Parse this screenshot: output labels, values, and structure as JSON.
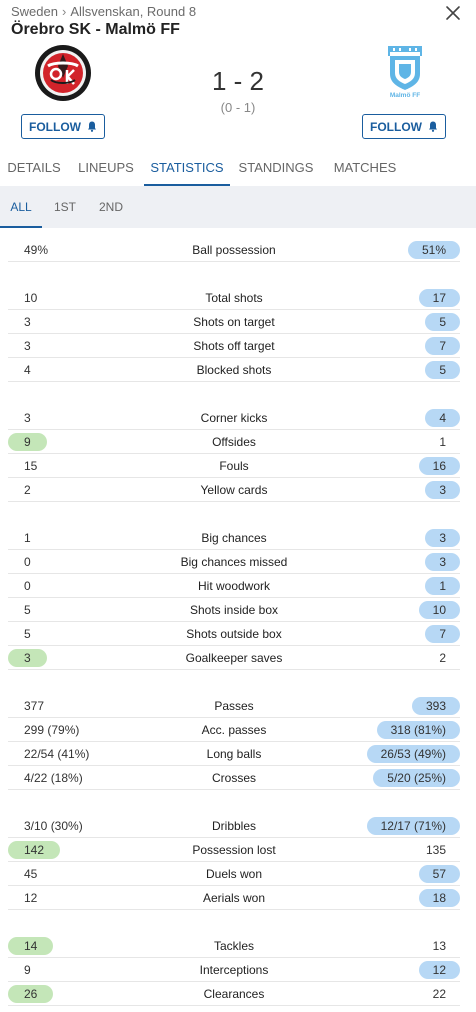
{
  "breadcrumb": {
    "country": "Sweden",
    "separator": "›",
    "league": "Allsvenskan, Round 8"
  },
  "match": {
    "title": "Örebro SK - Malmö FF",
    "score": "1 - 2",
    "halftime": "(0 - 1)"
  },
  "home": {
    "follow_label": "FOLLOW"
  },
  "away": {
    "follow_label": "FOLLOW",
    "logo_text": "Malmö FF"
  },
  "tabs": [
    "DETAILS",
    "LINEUPS",
    "STATISTICS",
    "STANDINGS",
    "MATCHES"
  ],
  "active_tab": "STATISTICS",
  "subtabs": [
    "ALL",
    "1ST",
    "2ND"
  ],
  "active_subtab": "ALL",
  "colors": {
    "accent": "#1a5d9e",
    "home_highlight": "#c4e6b8",
    "away_highlight": "#b7d8f5"
  },
  "stats": [
    {
      "name": "Ball possession",
      "home": "49%",
      "away": "51%",
      "better": "away"
    },
    {
      "name": "Total shots",
      "home": "10",
      "away": "17",
      "better": "away"
    },
    {
      "name": "Shots on target",
      "home": "3",
      "away": "5",
      "better": "away"
    },
    {
      "name": "Shots off target",
      "home": "3",
      "away": "7",
      "better": "away"
    },
    {
      "name": "Blocked shots",
      "home": "4",
      "away": "5",
      "better": "away"
    },
    {
      "name": "Corner kicks",
      "home": "3",
      "away": "4",
      "better": "away"
    },
    {
      "name": "Offsides",
      "home": "9",
      "away": "1",
      "better": "home"
    },
    {
      "name": "Fouls",
      "home": "15",
      "away": "16",
      "better": "away"
    },
    {
      "name": "Yellow cards",
      "home": "2",
      "away": "3",
      "better": "away"
    },
    {
      "name": "Big chances",
      "home": "1",
      "away": "3",
      "better": "away"
    },
    {
      "name": "Big chances missed",
      "home": "0",
      "away": "3",
      "better": "away"
    },
    {
      "name": "Hit woodwork",
      "home": "0",
      "away": "1",
      "better": "away"
    },
    {
      "name": "Shots inside box",
      "home": "5",
      "away": "10",
      "better": "away"
    },
    {
      "name": "Shots outside box",
      "home": "5",
      "away": "7",
      "better": "away"
    },
    {
      "name": "Goalkeeper saves",
      "home": "3",
      "away": "2",
      "better": "home"
    },
    {
      "name": "Passes",
      "home": "377",
      "away": "393",
      "better": "away"
    },
    {
      "name": "Acc. passes",
      "home": "299 (79%)",
      "away": "318 (81%)",
      "better": "away"
    },
    {
      "name": "Long balls",
      "home": "22/54 (41%)",
      "away": "26/53 (49%)",
      "better": "away"
    },
    {
      "name": "Crosses",
      "home": "4/22 (18%)",
      "away": "5/20 (25%)",
      "better": "away"
    },
    {
      "name": "Dribbles",
      "home": "3/10 (30%)",
      "away": "12/17 (71%)",
      "better": "away"
    },
    {
      "name": "Possession lost",
      "home": "142",
      "away": "135",
      "better": "home"
    },
    {
      "name": "Duels won",
      "home": "45",
      "away": "57",
      "better": "away"
    },
    {
      "name": "Aerials won",
      "home": "12",
      "away": "18",
      "better": "away"
    },
    {
      "name": "Tackles",
      "home": "14",
      "away": "13",
      "better": "home"
    },
    {
      "name": "Interceptions",
      "home": "9",
      "away": "12",
      "better": "away"
    },
    {
      "name": "Clearances",
      "home": "26",
      "away": "22",
      "better": "home"
    }
  ]
}
